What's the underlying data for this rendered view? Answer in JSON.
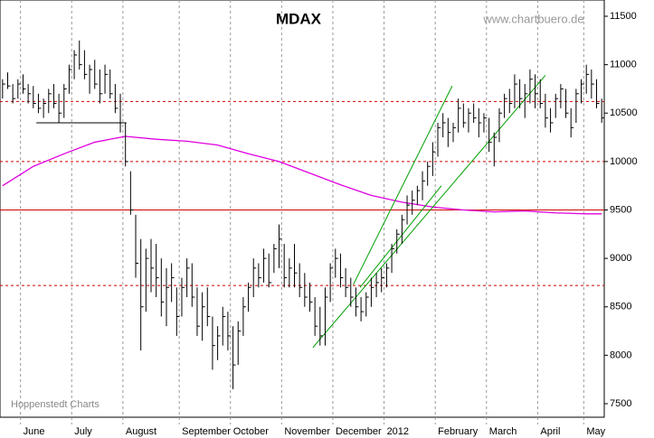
{
  "chart_data": {
    "type": "hlc",
    "title": "MDAX",
    "watermark": "www.chartbuero.de",
    "source": "Hoppenstedt Charts",
    "categories": [
      null,
      null,
      null,
      null,
      "June",
      null,
      null,
      null,
      null,
      null,
      null,
      null,
      null,
      null,
      "July",
      null,
      null,
      null,
      null,
      null,
      null,
      null,
      null,
      null,
      "August",
      null,
      null,
      null,
      null,
      null,
      null,
      null,
      null,
      null,
      null,
      "September",
      null,
      null,
      null,
      null,
      null,
      null,
      null,
      null,
      null,
      "October",
      null,
      null,
      null,
      null,
      null,
      null,
      null,
      null,
      null,
      "November",
      null,
      null,
      null,
      null,
      null,
      null,
      null,
      null,
      null,
      "December",
      null,
      null,
      null,
      null,
      null,
      null,
      null,
      null,
      null,
      "2012",
      null,
      null,
      null,
      null,
      null,
      null,
      null,
      null,
      null,
      "February",
      null,
      null,
      null,
      null,
      null,
      null,
      null,
      null,
      null,
      "March",
      null,
      null,
      null,
      null,
      null,
      null,
      null,
      null,
      null,
      "April",
      null,
      null,
      null,
      null,
      null,
      null,
      null,
      null,
      "May",
      null,
      null,
      null
    ],
    "high": [
      10850,
      10920,
      10800,
      10850,
      10900,
      10800,
      10780,
      10700,
      10650,
      10750,
      10800,
      10700,
      10800,
      11000,
      11150,
      11250,
      11150,
      11000,
      11050,
      10950,
      11000,
      10950,
      10800,
      10700,
      10400,
      9900,
      9450,
      9200,
      9100,
      9200,
      9150,
      9000,
      8900,
      8950,
      8700,
      8800,
      9000,
      8950,
      8700,
      8650,
      8700,
      8400,
      8300,
      8500,
      8450,
      8300,
      8350,
      8600,
      8750,
      9000,
      8950,
      9100,
      9050,
      9150,
      9350,
      9150,
      9000,
      9150,
      8950,
      8850,
      8750,
      8600,
      8500,
      8700,
      8950,
      9100,
      9050,
      8900,
      8800,
      8700,
      8600,
      8650,
      8800,
      8850,
      8900,
      8950,
      9150,
      9300,
      9450,
      9650,
      9700,
      9750,
      9900,
      10000,
      10200,
      10400,
      10500,
      10450,
      10400,
      10650,
      10600,
      10550,
      10600,
      10550,
      10500,
      10450,
      10300,
      10550,
      10700,
      10750,
      10900,
      10850,
      10800,
      10950,
      10900,
      10850,
      10700,
      10550,
      10700,
      10800,
      10750,
      10550,
      10750,
      10850,
      11000,
      10950,
      10850,
      10650
    ],
    "low": [
      10650,
      10750,
      10600,
      10650,
      10700,
      10600,
      10550,
      10500,
      10450,
      10500,
      10550,
      10400,
      10450,
      10700,
      10850,
      10950,
      10850,
      10700,
      10750,
      10600,
      10700,
      10650,
      10500,
      10300,
      9950,
      9450,
      8800,
      8050,
      8450,
      8650,
      8600,
      8400,
      8300,
      8550,
      8200,
      8400,
      8600,
      8500,
      8200,
      8150,
      8300,
      7850,
      7950,
      8100,
      8050,
      7650,
      7900,
      8200,
      8450,
      8600,
      8700,
      8750,
      8700,
      8850,
      8900,
      8700,
      8700,
      8700,
      8600,
      8500,
      8450,
      8200,
      8100,
      8100,
      8550,
      8800,
      8700,
      8600,
      8500,
      8400,
      8350,
      8400,
      8500,
      8600,
      8650,
      8700,
      8850,
      9050,
      9150,
      9350,
      9450,
      9550,
      9600,
      9750,
      9850,
      10050,
      10250,
      10150,
      10200,
      10300,
      10350,
      10300,
      10400,
      10250,
      10300,
      10100,
      9950,
      10200,
      10450,
      10500,
      10550,
      10550,
      10450,
      10600,
      10550,
      10550,
      10350,
      10300,
      10450,
      10550,
      10450,
      10250,
      10400,
      10600,
      10700,
      10650,
      10550,
      10400
    ],
    "close": [
      10800,
      10780,
      10650,
      10800,
      10750,
      10700,
      10600,
      10550,
      10600,
      10700,
      10600,
      10500,
      10750,
      10950,
      11100,
      11000,
      10900,
      10950,
      10800,
      10700,
      10900,
      10700,
      10550,
      10400,
      10000,
      9500,
      8950,
      8500,
      9000,
      8900,
      8800,
      8550,
      8700,
      8800,
      8400,
      8700,
      8900,
      8600,
      8300,
      8500,
      8400,
      8100,
      8200,
      8400,
      8200,
      7900,
      8250,
      8500,
      8700,
      8900,
      8800,
      9000,
      8750,
      9100,
      9200,
      8800,
      8900,
      8850,
      8700,
      8600,
      8550,
      8300,
      8200,
      8600,
      8900,
      9000,
      8800,
      8700,
      8600,
      8500,
      8450,
      8600,
      8700,
      8750,
      8800,
      8900,
      9100,
      9250,
      9400,
      9550,
      9600,
      9700,
      9800,
      9950,
      10100,
      10350,
      10400,
      10300,
      10350,
      10550,
      10400,
      10500,
      10450,
      10400,
      10450,
      10200,
      10250,
      10500,
      10650,
      10600,
      10800,
      10650,
      10700,
      10850,
      10700,
      10600,
      10450,
      10400,
      10650,
      10750,
      10500,
      10350,
      10700,
      10800,
      10900,
      10800,
      10600,
      10450
    ],
    "bar_color": "#000000",
    "moving_average": {
      "color": "#e000e0",
      "x": [
        0,
        6,
        12,
        18,
        24,
        30,
        36,
        42,
        48,
        54,
        60,
        66,
        72,
        78,
        84,
        90,
        96,
        102,
        108,
        114,
        117
      ],
      "values": [
        9750,
        9950,
        10080,
        10200,
        10260,
        10230,
        10210,
        10170,
        10080,
        10000,
        9880,
        9760,
        9650,
        9580,
        9530,
        9500,
        9480,
        9490,
        9470,
        9460,
        9460
      ]
    },
    "hlines": [
      {
        "value": 10620,
        "color": "#d00000",
        "dashed": true
      },
      {
        "value": 10000,
        "color": "#d00000",
        "dashed": true
      },
      {
        "value": 9500,
        "color": "#d00000",
        "dashed": false
      },
      {
        "value": 8720,
        "color": "#d00000",
        "dashed": true
      }
    ],
    "trendlines": [
      {
        "x": [
          6.6,
          24.2
        ],
        "values": [
          10400,
          10400
        ],
        "color": "#000000"
      },
      {
        "x": [
          60.6,
          106
        ],
        "values": [
          8080,
          10890
        ],
        "color": "#00a000"
      },
      {
        "x": [
          68.5,
          87.8
        ],
        "values": [
          8730,
          10780
        ],
        "color": "#00a000"
      },
      {
        "x": [
          69.8,
          85.7
        ],
        "values": [
          8700,
          9750
        ],
        "color": "#00a000"
      }
    ],
    "ylim": [
      7500,
      11500
    ],
    "yticks": [
      7500,
      8000,
      8500,
      9000,
      9500,
      10000,
      10500,
      11000,
      11500
    ]
  }
}
